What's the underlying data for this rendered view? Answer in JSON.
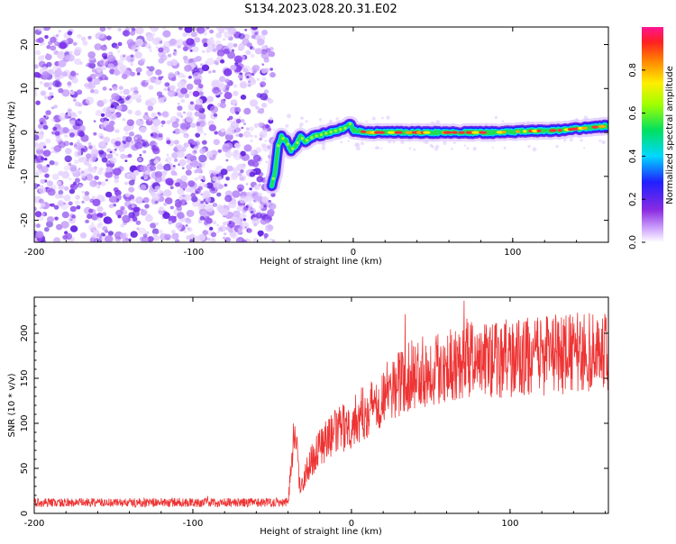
{
  "page": {
    "title": "S134.2023.028.20.31.E02"
  },
  "chart_data": [
    {
      "type": "heatmap",
      "title": "S134.2023.028.20.31.E02",
      "xlabel": "Height of straight line (km)",
      "ylabel": "Frequency (Hz)",
      "xlim": [
        -200,
        160
      ],
      "ylim": [
        -25,
        24
      ],
      "x_ticks": [
        -200,
        -100,
        0,
        100
      ],
      "y_ticks": [
        20,
        10,
        0,
        -10,
        -20
      ],
      "ridge": {
        "description_points_x": [
          -51,
          -49,
          -47,
          -45,
          -42,
          -39,
          -36,
          -33,
          -30,
          -25,
          -20,
          -15,
          -10,
          -5,
          -2,
          0,
          10,
          30,
          60,
          90,
          110,
          130,
          145,
          160
        ],
        "description_points_y": [
          -12,
          -9,
          -3,
          -1,
          -2,
          -4,
          -3,
          -1,
          -2,
          -1,
          -0.5,
          0,
          0.5,
          1,
          2,
          0.5,
          0,
          0,
          0,
          0,
          0.3,
          0.5,
          1,
          1.5
        ]
      },
      "noise_region_x": [
        -200,
        -50
      ],
      "colorbar": {
        "label": "Normalized spectral amplitude",
        "range": [
          0.0,
          1.0
        ],
        "ticks": [
          "0.0",
          "0.2",
          "0.4",
          "0.6",
          "0.8"
        ],
        "ticks_values": [
          0.0,
          0.2,
          0.4,
          0.6,
          0.8
        ]
      }
    },
    {
      "type": "line",
      "xlabel": "Height of straight line (km)",
      "ylabel": "SNR (10 * v/v)",
      "xlim": [
        -200,
        162
      ],
      "ylim": [
        0,
        240
      ],
      "x_ticks": [
        -200,
        -100,
        0,
        100
      ],
      "y_ticks": [
        0,
        50,
        100,
        150,
        200
      ],
      "color": "#ee3333",
      "series_trend": {
        "x": [
          -200,
          -150,
          -100,
          -60,
          -40,
          -37,
          -35,
          -33,
          -30,
          -25,
          -20,
          -10,
          0,
          10,
          20,
          30,
          40,
          50,
          60,
          70,
          80,
          100,
          120,
          140,
          160
        ],
        "y": [
          12,
          12,
          12,
          12,
          13,
          75,
          95,
          30,
          40,
          60,
          75,
          90,
          100,
          115,
          130,
          145,
          155,
          160,
          165,
          170,
          170,
          172,
          175,
          178,
          180
        ]
      }
    }
  ]
}
